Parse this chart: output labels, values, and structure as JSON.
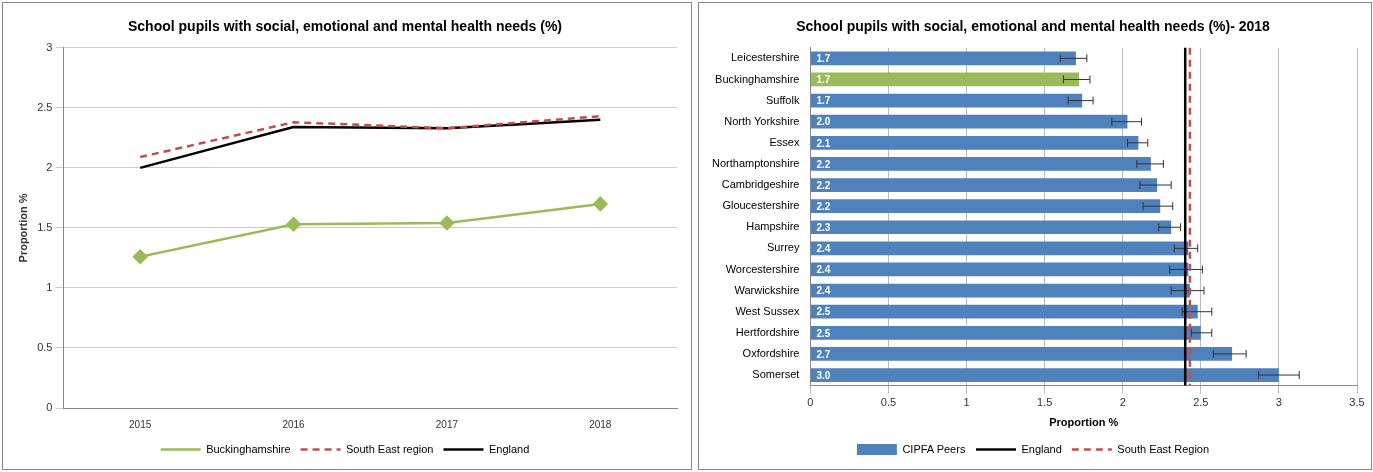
{
  "chart_data": [
    {
      "type": "line",
      "title": "School pupils with social, emotional and mental health needs (%)",
      "ylabel": "Proportion %",
      "categories": [
        "2015",
        "2016",
        "2017",
        "2018"
      ],
      "series": [
        {
          "name": "Buckinghamshire",
          "color": "#9bbb59",
          "marker": "diamond",
          "line_style": "solid",
          "values": [
            1.26,
            1.53,
            1.54,
            1.7
          ]
        },
        {
          "name": "South East region",
          "color": "#c0504d",
          "marker": "none",
          "line_style": "dashed",
          "values": [
            2.09,
            2.38,
            2.33,
            2.43
          ]
        },
        {
          "name": "England",
          "color": "#000000",
          "marker": "none",
          "line_style": "solid",
          "values": [
            2.0,
            2.34,
            2.33,
            2.4
          ]
        }
      ],
      "ylim": [
        0,
        3
      ],
      "yticks": [
        0,
        0.5,
        1,
        1.5,
        2,
        2.5,
        3
      ],
      "grid": "y",
      "legend": "bottom"
    },
    {
      "type": "bar",
      "orientation": "horizontal",
      "title": "School pupils with social, emotional and mental health needs (%)- 2018",
      "xlabel": "Proportion %",
      "categories": [
        "Leicestershire",
        "Buckinghamshire",
        "Suffolk",
        "North Yorkshire",
        "Essex",
        "Northamptonshire",
        "Cambridgeshire",
        "Gloucestershire",
        "Hampshire",
        "Surrey",
        "Worcestershire",
        "Warwickshire",
        "West Sussex",
        "Hertfordshire",
        "Oxfordshire",
        "Somerset"
      ],
      "series": [
        {
          "name": "CIPFA Peers",
          "color": "#4f81bd",
          "colors": [
            "#4f81bd",
            "#9bbb59",
            "#4f81bd",
            "#4f81bd",
            "#4f81bd",
            "#4f81bd",
            "#4f81bd",
            "#4f81bd",
            "#4f81bd",
            "#4f81bd",
            "#4f81bd",
            "#4f81bd",
            "#4f81bd",
            "#4f81bd",
            "#4f81bd",
            "#4f81bd"
          ],
          "values": [
            1.7,
            1.72,
            1.74,
            2.03,
            2.1,
            2.18,
            2.22,
            2.24,
            2.31,
            2.42,
            2.42,
            2.43,
            2.48,
            2.5,
            2.7,
            3.0
          ],
          "errors": [
            [
              1.6,
              1.77
            ],
            [
              1.62,
              1.79
            ],
            [
              1.65,
              1.81
            ],
            [
              1.93,
              2.12
            ],
            [
              2.03,
              2.16
            ],
            [
              2.09,
              2.26
            ],
            [
              2.11,
              2.31
            ],
            [
              2.13,
              2.32
            ],
            [
              2.23,
              2.37
            ],
            [
              2.33,
              2.48
            ],
            [
              2.3,
              2.51
            ],
            [
              2.31,
              2.52
            ],
            [
              2.38,
              2.57
            ],
            [
              2.44,
              2.57
            ],
            [
              2.58,
              2.79
            ],
            [
              2.87,
              3.13
            ]
          ],
          "value_labels": [
            "1.7",
            "1.7",
            "1.7",
            "2.0",
            "2.1",
            "2.2",
            "2.2",
            "2.2",
            "2.3",
            "2.4",
            "2.4",
            "2.4",
            "2.5",
            "2.5",
            "2.7",
            "3.0"
          ]
        }
      ],
      "ref_lines": [
        {
          "axis": "x",
          "value": 2.4,
          "label": "England",
          "color": "#000000",
          "line_style": "solid"
        },
        {
          "axis": "x",
          "value": 2.43,
          "label": "South East Region",
          "color": "#c0504d",
          "line_style": "dashed"
        }
      ],
      "xlim": [
        0,
        3.5
      ],
      "xticks": [
        0,
        0.5,
        1,
        1.5,
        2,
        2.5,
        3,
        3.5
      ],
      "grid": "x",
      "legend": "bottom"
    }
  ]
}
